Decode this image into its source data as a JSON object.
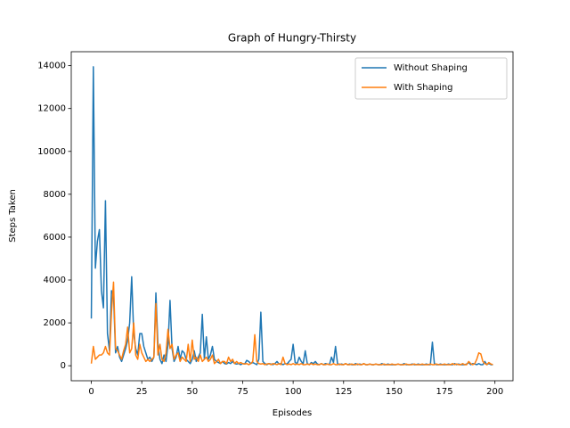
{
  "chart_data": {
    "type": "line",
    "title": "Graph of Hungry-Thirsty",
    "x_label": "Episodes",
    "y_label": "Steps Taken",
    "x": [
      0,
      1,
      2,
      3,
      4,
      5,
      6,
      7,
      8,
      9,
      10,
      11,
      12,
      13,
      14,
      15,
      16,
      17,
      18,
      19,
      20,
      21,
      22,
      23,
      24,
      25,
      26,
      27,
      28,
      29,
      30,
      31,
      32,
      33,
      34,
      35,
      36,
      37,
      38,
      39,
      40,
      41,
      42,
      43,
      44,
      45,
      46,
      47,
      48,
      49,
      50,
      51,
      52,
      53,
      54,
      55,
      56,
      57,
      58,
      59,
      60,
      61,
      62,
      63,
      64,
      65,
      66,
      67,
      68,
      69,
      70,
      71,
      72,
      73,
      74,
      75,
      76,
      77,
      78,
      79,
      80,
      81,
      82,
      83,
      84,
      85,
      86,
      87,
      88,
      89,
      90,
      91,
      92,
      93,
      94,
      95,
      96,
      97,
      98,
      99,
      100,
      101,
      102,
      103,
      104,
      105,
      106,
      107,
      108,
      109,
      110,
      111,
      112,
      113,
      114,
      115,
      116,
      117,
      118,
      119,
      120,
      121,
      122,
      123,
      124,
      125,
      126,
      127,
      128,
      129,
      130,
      131,
      132,
      133,
      134,
      135,
      136,
      137,
      138,
      139,
      140,
      141,
      142,
      143,
      144,
      145,
      146,
      147,
      148,
      149,
      150,
      151,
      152,
      153,
      154,
      155,
      156,
      157,
      158,
      159,
      160,
      161,
      162,
      163,
      164,
      165,
      166,
      167,
      168,
      169,
      170,
      171,
      172,
      173,
      174,
      175,
      176,
      177,
      178,
      179,
      180,
      181,
      182,
      183,
      184,
      185,
      186,
      187,
      188,
      189,
      190,
      191,
      192,
      193,
      194,
      195,
      196,
      197,
      198,
      199
    ],
    "series": [
      {
        "name": "Without Shaping",
        "color": "#1f77b4",
        "values": [
          2200,
          13950,
          4550,
          5800,
          6350,
          3500,
          2700,
          7700,
          1500,
          700,
          3500,
          3300,
          600,
          900,
          400,
          200,
          500,
          800,
          1200,
          2000,
          4150,
          1500,
          800,
          500,
          1500,
          1500,
          900,
          600,
          300,
          400,
          200,
          400,
          3400,
          1000,
          300,
          100,
          500,
          200,
          1000,
          3050,
          800,
          200,
          400,
          900,
          300,
          700,
          600,
          300,
          200,
          100,
          300,
          700,
          200,
          400,
          600,
          2400,
          300,
          1350,
          300,
          500,
          900,
          300,
          200,
          150,
          100,
          200,
          100,
          80,
          150,
          100,
          200,
          100,
          80,
          100,
          50,
          100,
          80,
          250,
          200,
          100,
          150,
          100,
          50,
          300,
          2500,
          200,
          100,
          50,
          100,
          80,
          50,
          100,
          200,
          80,
          100,
          50,
          100,
          80,
          200,
          300,
          1000,
          150,
          100,
          400,
          200,
          100,
          700,
          100,
          50,
          150,
          100,
          200,
          80,
          50,
          100,
          50,
          100,
          80,
          50,
          400,
          150,
          900,
          100,
          50,
          80,
          50,
          100,
          50,
          80,
          50,
          50,
          100,
          50,
          80,
          50,
          100,
          50,
          50,
          80,
          50,
          50,
          80,
          50,
          50,
          100,
          50,
          50,
          80,
          50,
          50,
          50,
          50,
          80,
          50,
          50,
          100,
          50,
          50,
          50,
          80,
          50,
          50,
          80,
          50,
          50,
          50,
          80,
          50,
          50,
          1100,
          100,
          50,
          50,
          80,
          50,
          50,
          50,
          80,
          50,
          50,
          100,
          50,
          80,
          50,
          50,
          50,
          80,
          150,
          50,
          100,
          80,
          50,
          100,
          50,
          50,
          200,
          50,
          100,
          50,
          50
        ]
      },
      {
        "name": "With Shaping",
        "color": "#ff7f0e",
        "values": [
          100,
          900,
          300,
          400,
          500,
          500,
          600,
          900,
          600,
          500,
          2500,
          3900,
          800,
          700,
          500,
          300,
          700,
          1000,
          1800,
          600,
          800,
          2000,
          500,
          300,
          1000,
          600,
          400,
          200,
          300,
          200,
          300,
          400,
          2900,
          500,
          1000,
          300,
          200,
          600,
          1700,
          800,
          1000,
          300,
          500,
          600,
          200,
          400,
          300,
          200,
          1000,
          200,
          1200,
          300,
          400,
          200,
          500,
          200,
          300,
          400,
          200,
          300,
          500,
          100,
          200,
          300,
          100,
          200,
          200,
          100,
          400,
          200,
          300,
          100,
          200,
          100,
          150,
          100,
          80,
          100,
          50,
          100,
          200,
          1450,
          200,
          100,
          80,
          100,
          50,
          80,
          100,
          50,
          100,
          80,
          50,
          100,
          50,
          400,
          100,
          50,
          80,
          50,
          100,
          50,
          80,
          50,
          100,
          50,
          50,
          80,
          50,
          100,
          50,
          80,
          50,
          50,
          100,
          50,
          50,
          80,
          50,
          50,
          100,
          50,
          50,
          80,
          50,
          50,
          100,
          50,
          50,
          80,
          50,
          50,
          80,
          50,
          50,
          100,
          50,
          50,
          80,
          50,
          50,
          80,
          50,
          50,
          50,
          80,
          50,
          50,
          50,
          80,
          50,
          50,
          80,
          50,
          50,
          50,
          80,
          50,
          50,
          50,
          80,
          50,
          50,
          50,
          80,
          50,
          50,
          50,
          80,
          50,
          50,
          80,
          50,
          50,
          50,
          80,
          50,
          50,
          50,
          100,
          50,
          80,
          50,
          50,
          100,
          50,
          50,
          200,
          100,
          50,
          100,
          300,
          600,
          550,
          200,
          100,
          50,
          150,
          80,
          50
        ]
      }
    ],
    "xlim": [
      -9.95,
      208.95
    ],
    "xticks": [
      0,
      25,
      50,
      75,
      100,
      125,
      150,
      175,
      200
    ],
    "ylim": [
      -700,
      14650
    ],
    "yticks": [
      0,
      2000,
      4000,
      6000,
      8000,
      10000,
      12000,
      14000
    ],
    "legend": "upper right"
  }
}
